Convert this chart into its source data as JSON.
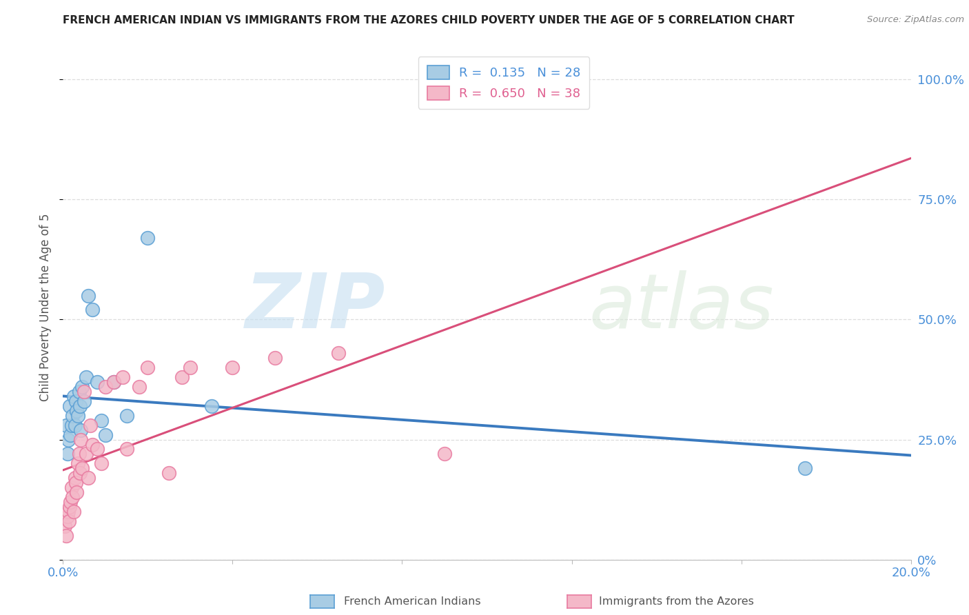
{
  "title": "FRENCH AMERICAN INDIAN VS IMMIGRANTS FROM THE AZORES CHILD POVERTY UNDER THE AGE OF 5 CORRELATION CHART",
  "source": "Source: ZipAtlas.com",
  "ylabel": "Child Poverty Under the Age of 5",
  "blue_label": "French American Indians",
  "pink_label": "Immigrants from the Azores",
  "blue_color": "#a8cce4",
  "pink_color": "#f4b8c8",
  "blue_line_color": "#3a7abf",
  "pink_line_color": "#d94f7a",
  "blue_edge_color": "#5a9fd4",
  "pink_edge_color": "#e87aa0",
  "watermark_color": "#d5e8f5",
  "title_color": "#222222",
  "source_color": "#888888",
  "axis_label_color": "#4a90d9",
  "ylabel_color": "#555555",
  "legend_r_blue_color": "#4a90d9",
  "legend_r_pink_color": "#e06090",
  "legend_n_blue_color": "#3060b0",
  "legend_n_pink_color": "#b03060",
  "blue_scatter_x": [
    0.08,
    0.1,
    0.12,
    0.15,
    0.18,
    0.2,
    0.22,
    0.25,
    0.28,
    0.3,
    0.32,
    0.35,
    0.38,
    0.4,
    0.42,
    0.45,
    0.5,
    0.55,
    0.6,
    0.7,
    0.8,
    0.9,
    1.0,
    1.2,
    1.5,
    2.0,
    3.5,
    17.5
  ],
  "blue_scatter_y": [
    28,
    22,
    25,
    32,
    26,
    28,
    30,
    34,
    28,
    33,
    31,
    30,
    35,
    32,
    27,
    36,
    33,
    38,
    55,
    52,
    37,
    29,
    26,
    37,
    30,
    67,
    32,
    19
  ],
  "pink_scatter_x": [
    0.05,
    0.08,
    0.1,
    0.12,
    0.14,
    0.15,
    0.18,
    0.2,
    0.22,
    0.25,
    0.28,
    0.3,
    0.32,
    0.35,
    0.38,
    0.4,
    0.42,
    0.45,
    0.5,
    0.55,
    0.6,
    0.65,
    0.7,
    0.8,
    0.9,
    1.0,
    1.2,
    1.4,
    1.5,
    1.8,
    2.0,
    2.5,
    2.8,
    3.0,
    4.0,
    5.0,
    6.5,
    9.0
  ],
  "pink_scatter_y": [
    7,
    5,
    9,
    10,
    8,
    11,
    12,
    15,
    13,
    10,
    17,
    16,
    14,
    20,
    22,
    18,
    25,
    19,
    35,
    22,
    17,
    28,
    24,
    23,
    20,
    36,
    37,
    38,
    23,
    36,
    40,
    18,
    38,
    40,
    40,
    42,
    43,
    22
  ],
  "xmin": 0,
  "xmax": 20,
  "ymin": 0,
  "ymax": 105,
  "yticks": [
    0,
    25,
    50,
    75,
    100
  ],
  "ytick_labels": [
    "0%",
    "25.0%",
    "50.0%",
    "75.0%",
    "100.0%"
  ],
  "xtick_positions": [
    0,
    4,
    8,
    12,
    16,
    20
  ],
  "xtick_labels_show": {
    "0": "0.0%",
    "20": "20.0%"
  },
  "grid_color": "#dddddd",
  "legend_blue_text": "R =  0.135   N = 28",
  "legend_pink_text": "R =  0.650   N = 38"
}
